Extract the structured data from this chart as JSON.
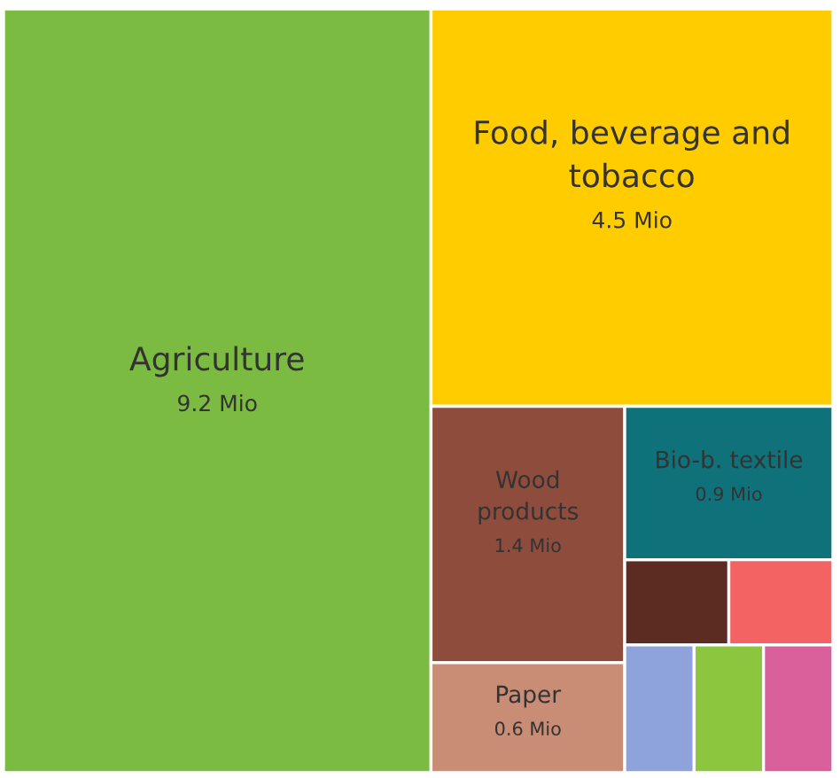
{
  "chart_data": {
    "type": "other",
    "categories": [
      "Agriculture",
      "Food, beverage and\ntobacco",
      "Wood\nproducts",
      "Paper",
      null,
      "Bio-b. textile",
      null,
      null,
      null,
      null
    ],
    "values": [
      9.2,
      4.5,
      1.4,
      0.6,
      null,
      0.9,
      null,
      null,
      null,
      null
    ],
    "value_labels": [
      "9.2 Mio",
      "4.5 Mio",
      "1.4 Mio",
      "0.6 Mio",
      null,
      "0.9 Mio",
      null,
      null,
      null,
      null
    ],
    "colors": [
      "#7cbb42",
      "#ffcc00",
      "#8e4d3c",
      "#c98c74",
      "#5c2c22",
      "#0f7179",
      "#f46363",
      "#8ea2dc",
      "#8cc63f",
      "#d9609b"
    ]
  }
}
